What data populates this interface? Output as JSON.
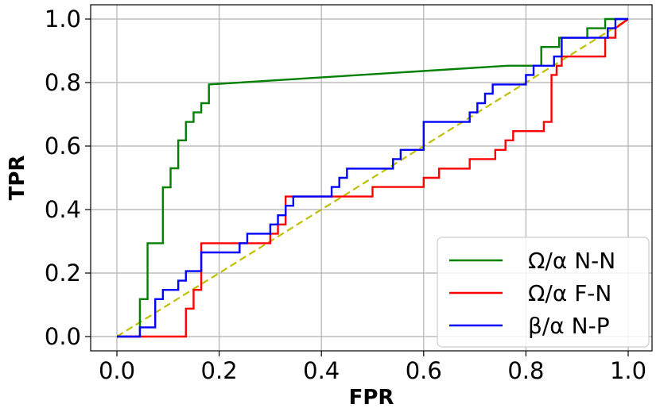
{
  "chart_data": {
    "type": "line",
    "title": "",
    "xlabel": "FPR",
    "ylabel": "TPR",
    "xlim": [
      -0.05,
      1.05
    ],
    "ylim": [
      -0.05,
      1.0
    ],
    "grid": true,
    "legend_position": "bottom-right",
    "xticks": [
      "0.0",
      "0.2",
      "0.4",
      "0.6",
      "0.8",
      "1.0"
    ],
    "yticks": [
      "0.0",
      "0.2",
      "0.4",
      "0.6",
      "0.8",
      "1.0"
    ],
    "diagonal": {
      "x": [
        0,
        1
      ],
      "y": [
        0,
        1
      ],
      "color": "#bfbf00",
      "style": "dashed"
    },
    "series": [
      {
        "name": "Ω/α N-N",
        "color": "#008000",
        "x": [
          0.0,
          0.045,
          0.045,
          0.06,
          0.06,
          0.09,
          0.09,
          0.105,
          0.105,
          0.12,
          0.12,
          0.135,
          0.135,
          0.15,
          0.15,
          0.165,
          0.165,
          0.18,
          0.18,
          0.765,
          0.785,
          0.79,
          0.83,
          0.83,
          0.865,
          0.865,
          0.9,
          0.9,
          0.92,
          0.92,
          0.94,
          0.94,
          0.955,
          0.955,
          1.0
        ],
        "y": [
          0.0,
          0.0,
          0.118,
          0.118,
          0.294,
          0.294,
          0.47,
          0.47,
          0.53,
          0.53,
          0.618,
          0.618,
          0.676,
          0.676,
          0.706,
          0.706,
          0.735,
          0.735,
          0.794,
          0.853,
          0.853,
          0.853,
          0.853,
          0.912,
          0.912,
          0.941,
          0.941,
          0.941,
          0.941,
          0.971,
          0.971,
          0.971,
          0.971,
          1.0,
          1.0
        ]
      },
      {
        "name": "Ω/α F-N",
        "color": "#ff0000",
        "x": [
          0.0,
          0.135,
          0.135,
          0.15,
          0.15,
          0.165,
          0.165,
          0.3,
          0.3,
          0.315,
          0.315,
          0.33,
          0.33,
          0.435,
          0.435,
          0.5,
          0.5,
          0.6,
          0.6,
          0.63,
          0.63,
          0.66,
          0.66,
          0.69,
          0.69,
          0.74,
          0.74,
          0.76,
          0.76,
          0.775,
          0.775,
          0.835,
          0.835,
          0.85,
          0.85,
          0.86,
          0.86,
          0.87,
          0.87,
          0.89,
          0.89,
          0.955,
          0.955,
          0.975,
          0.975,
          1.0
        ],
        "y": [
          0.0,
          0.0,
          0.088,
          0.088,
          0.147,
          0.147,
          0.294,
          0.294,
          0.324,
          0.324,
          0.353,
          0.353,
          0.441,
          0.441,
          0.441,
          0.441,
          0.471,
          0.471,
          0.5,
          0.5,
          0.529,
          0.529,
          0.529,
          0.529,
          0.559,
          0.559,
          0.588,
          0.588,
          0.618,
          0.618,
          0.647,
          0.647,
          0.676,
          0.676,
          0.824,
          0.824,
          0.853,
          0.853,
          0.882,
          0.882,
          0.882,
          0.882,
          0.941,
          0.941,
          0.971,
          1.0
        ]
      },
      {
        "name": "β/α N-P",
        "color": "#0000ff",
        "x": [
          0.0,
          0.045,
          0.045,
          0.075,
          0.075,
          0.09,
          0.09,
          0.12,
          0.12,
          0.135,
          0.135,
          0.165,
          0.165,
          0.24,
          0.24,
          0.255,
          0.255,
          0.3,
          0.3,
          0.315,
          0.315,
          0.33,
          0.33,
          0.345,
          0.345,
          0.36,
          0.36,
          0.42,
          0.42,
          0.435,
          0.435,
          0.45,
          0.45,
          0.54,
          0.54,
          0.555,
          0.555,
          0.6,
          0.6,
          0.69,
          0.69,
          0.705,
          0.705,
          0.72,
          0.72,
          0.735,
          0.735,
          0.8,
          0.8,
          0.815,
          0.815,
          0.84,
          0.84,
          0.855,
          0.855,
          0.87,
          0.87,
          0.93,
          0.93,
          0.96,
          0.96,
          0.975,
          0.975,
          1.0
        ],
        "y": [
          0.0,
          0.0,
          0.029,
          0.029,
          0.118,
          0.118,
          0.147,
          0.147,
          0.176,
          0.176,
          0.206,
          0.206,
          0.265,
          0.265,
          0.294,
          0.294,
          0.324,
          0.324,
          0.353,
          0.353,
          0.382,
          0.382,
          0.412,
          0.412,
          0.441,
          0.441,
          0.441,
          0.441,
          0.471,
          0.471,
          0.5,
          0.5,
          0.529,
          0.529,
          0.559,
          0.559,
          0.588,
          0.588,
          0.676,
          0.676,
          0.706,
          0.706,
          0.735,
          0.735,
          0.765,
          0.765,
          0.794,
          0.794,
          0.824,
          0.824,
          0.853,
          0.853,
          0.853,
          0.853,
          0.882,
          0.882,
          0.941,
          0.941,
          0.941,
          0.941,
          0.971,
          0.971,
          1.0,
          1.0
        ]
      }
    ]
  }
}
